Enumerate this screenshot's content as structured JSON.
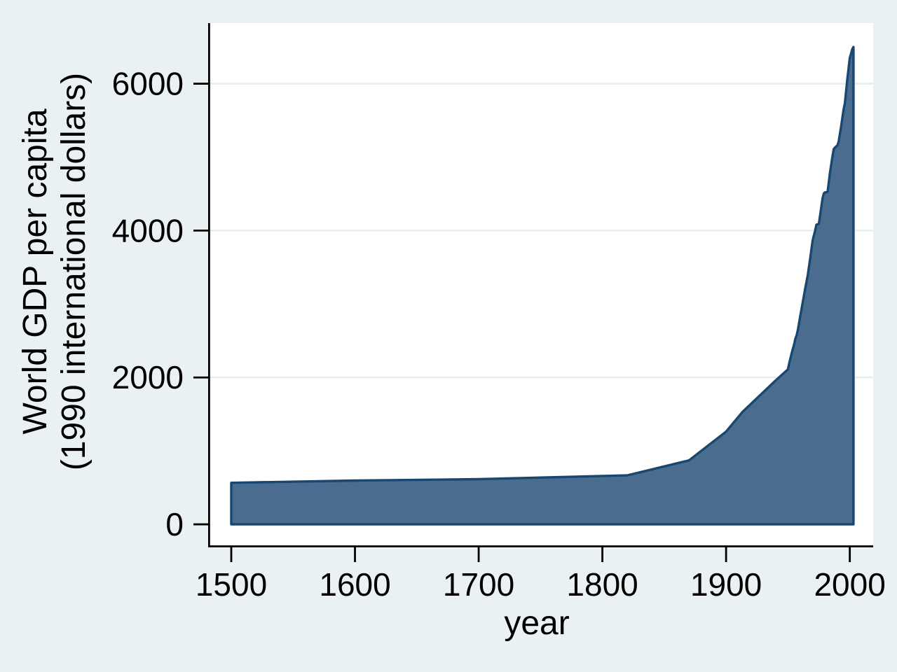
{
  "chart_data": {
    "type": "area",
    "title": "",
    "xlabel": "year",
    "ylabel_lines": [
      "World GDP per capita",
      "(1990 international dollars)"
    ],
    "x_ticks": [
      1500,
      1600,
      1700,
      1800,
      1900,
      2000
    ],
    "y_ticks": [
      0,
      2000,
      4000,
      6000
    ],
    "grid_values": [
      2000,
      4000,
      6000
    ],
    "xlim": [
      1481.3,
      2018.9
    ],
    "ylim": [
      -295,
      6825
    ],
    "grid": "on",
    "legend": "none",
    "series": [
      {
        "name": "World GDP per capita (1990 international dollars)",
        "baseline": 0,
        "points": [
          [
            1500,
            566
          ],
          [
            1600,
            596
          ],
          [
            1700,
            615
          ],
          [
            1820,
            667
          ],
          [
            1870,
            871
          ],
          [
            1900,
            1262
          ],
          [
            1913,
            1526
          ],
          [
            1940,
            1958
          ],
          [
            1950,
            2111
          ],
          [
            1951,
            2190
          ],
          [
            1953,
            2330
          ],
          [
            1955,
            2450
          ],
          [
            1956,
            2530
          ],
          [
            1957,
            2570
          ],
          [
            1958,
            2645
          ],
          [
            1960,
            2840
          ],
          [
            1962,
            3030
          ],
          [
            1964,
            3215
          ],
          [
            1966,
            3390
          ],
          [
            1968,
            3620
          ],
          [
            1970,
            3870
          ],
          [
            1972,
            4000
          ],
          [
            1973,
            4080
          ],
          [
            1975,
            4090
          ],
          [
            1976,
            4210
          ],
          [
            1978,
            4440
          ],
          [
            1979,
            4505
          ],
          [
            1980,
            4520
          ],
          [
            1982,
            4525
          ],
          [
            1984,
            4790
          ],
          [
            1986,
            5010
          ],
          [
            1987,
            5110
          ],
          [
            1988,
            5130
          ],
          [
            1990,
            5160
          ],
          [
            1991,
            5210
          ],
          [
            1993,
            5420
          ],
          [
            1995,
            5650
          ],
          [
            1996,
            5735
          ],
          [
            1998,
            6060
          ],
          [
            2000,
            6350
          ],
          [
            2002,
            6470
          ],
          [
            2003,
            6500
          ]
        ]
      }
    ],
    "colors": {
      "background": "#eaf1f3",
      "plot_background": "#ffffff",
      "gridline": "#e4eef1",
      "area_fill": "#4a6d8f",
      "area_stroke": "#1a476f",
      "axis": "#000000",
      "text": "#000000"
    }
  }
}
